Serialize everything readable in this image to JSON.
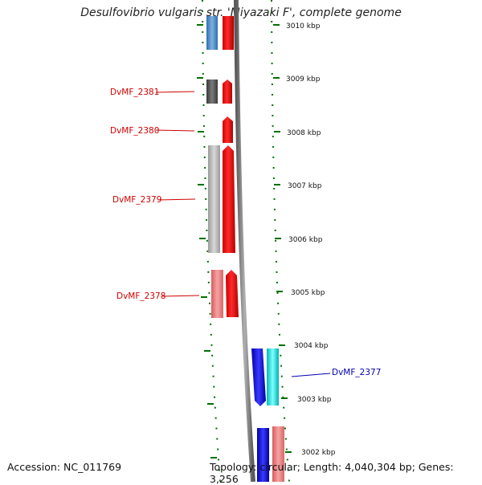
{
  "title": "Desulfovibrio vulgaris str. 'Miyazaki F', complete genome",
  "footer": {
    "accession": "Accession: NC_011769",
    "stats": "Topology: circular; Length: 4,040,304 bp; Genes: 3,256"
  },
  "scale_labels": [
    "3010 kbp",
    "3009 kbp",
    "3008 kbp",
    "3007 kbp",
    "3006 kbp",
    "3005 kbp",
    "3004 kbp",
    "3003 kbp",
    "3002 kbp"
  ],
  "gene_labels": [
    "DvMF_2381",
    "DvMF_2380",
    "DvMF_2379",
    "DvMF_2378",
    "DvMF_2377"
  ],
  "colors": {
    "forward_cds": "#ff0000",
    "forward_feature": "#f08080",
    "reverse_cds": "#0000ff",
    "reverse_feature": "#00e5e5",
    "gene_grey": "#606060",
    "backbone": "#808080",
    "tick_green": "#007000",
    "label_red": "#d00000",
    "label_blue": "#0000b0"
  }
}
